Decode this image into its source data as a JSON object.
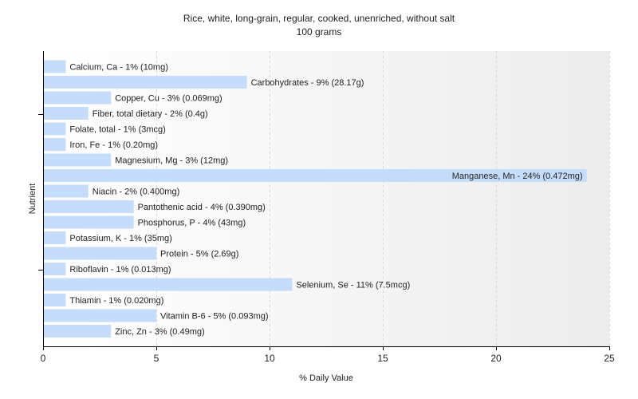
{
  "chart_data": {
    "type": "bar",
    "orientation": "horizontal",
    "title": "Rice, white, long-grain, regular, cooked, unenriched, without salt",
    "subtitle": "100 grams",
    "xlabel": "% Daily Value",
    "ylabel": "Nutrient",
    "xlim": [
      0,
      25
    ],
    "xticks": [
      "0",
      "5",
      "10",
      "15",
      "20",
      "25"
    ],
    "grid": true,
    "bar_color": "#c5ddfa",
    "categories": [
      "Calcium, Ca",
      "Carbohydrates",
      "Copper, Cu",
      "Fiber, total dietary",
      "Folate, total",
      "Iron, Fe",
      "Magnesium, Mg",
      "Manganese, Mn",
      "Niacin",
      "Pantothenic acid",
      "Phosphorus, P",
      "Potassium, K",
      "Protein",
      "Riboflavin",
      "Selenium, Se",
      "Thiamin",
      "Vitamin B-6",
      "Zinc, Zn"
    ],
    "values": [
      1,
      9,
      3,
      2,
      1,
      1,
      3,
      24,
      2,
      4,
      4,
      1,
      5,
      1,
      11,
      1,
      5,
      3
    ],
    "data_labels": [
      "Calcium, Ca - 1% (10mg)",
      "Carbohydrates - 9% (28.17g)",
      "Copper, Cu - 3% (0.069mg)",
      "Fiber, total dietary - 2% (0.4g)",
      "Folate, total - 1% (3mcg)",
      "Iron, Fe - 1% (0.20mg)",
      "Magnesium, Mg - 3% (12mg)",
      "Manganese, Mn - 24% (0.472mg)",
      "Niacin - 2% (0.400mg)",
      "Pantothenic acid - 4% (0.390mg)",
      "Phosphorus, P - 4% (43mg)",
      "Potassium, K - 1% (35mg)",
      "Protein - 5% (2.69g)",
      "Riboflavin - 1% (0.013mg)",
      "Selenium, Se - 11% (7.5mcg)",
      "Thiamin - 1% (0.020mg)",
      "Vitamin B-6 - 5% (0.093mg)",
      "Zinc, Zn - 3% (0.49mg)"
    ]
  }
}
